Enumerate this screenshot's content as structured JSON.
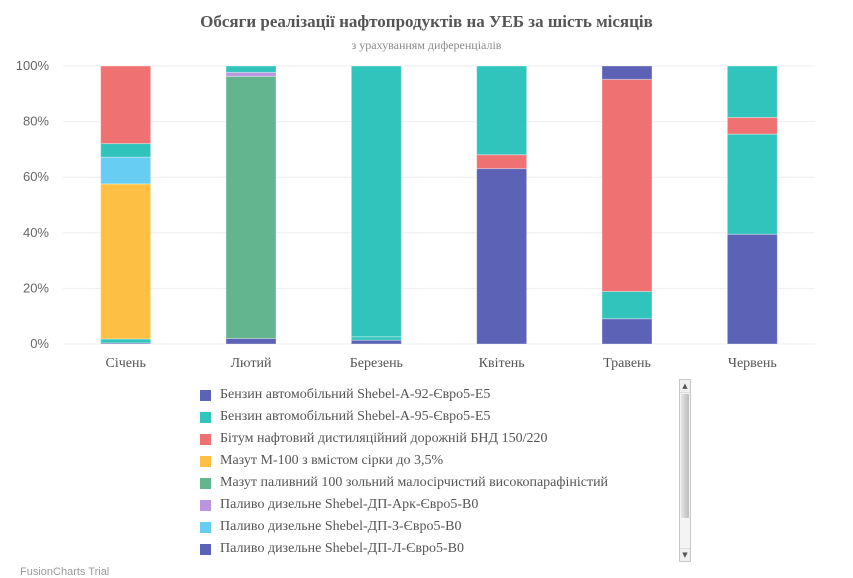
{
  "chart_data": {
    "type": "bar",
    "stacking": "percent",
    "orientation": "vertical",
    "title": "Обсяги реалізації нафтопродуктів на УЕБ за шість місяців",
    "subtitle": "з урахуванням диференціалів",
    "xlabel": "",
    "ylabel": "",
    "ylim": [
      0,
      100
    ],
    "y_ticks": [
      "0%",
      "20%",
      "40%",
      "60%",
      "80%",
      "100%"
    ],
    "grid": true,
    "legend_position": "bottom",
    "categories": [
      "Січень",
      "Лютий",
      "Березень",
      "Квітень",
      "Травень",
      "Червень"
    ],
    "legend": [
      {
        "name": "Бензин автомобільний Shebel-А-92-Євро5-Е5",
        "color": "#5c62b5"
      },
      {
        "name": "Бензин автомобільний Shebel-А-95-Євро5-Е5",
        "color": "#31c4bd"
      },
      {
        "name": "Бітум нафтовий дистиляційний дорожній БНД 150/220",
        "color": "#f07172"
      },
      {
        "name": "Мазут М-100 з вмістом сірки до 3,5%",
        "color": "#fdc044"
      },
      {
        "name": "Мазут паливний 100 зольний малосірчистий високопарафіністий",
        "color": "#62b58f"
      },
      {
        "name": "Паливо дизельне Shebel-ДП-Арк-Євро5-В0",
        "color": "#bc95df"
      },
      {
        "name": "Паливо дизельне Shebel-ДП-З-Євро5-В0",
        "color": "#67cdf2"
      },
      {
        "name": "Паливо дизельне Shebel-ДП-Л-Євро5-В0",
        "color": "#5c62b5"
      }
    ],
    "stacks_bottom_to_top": [
      {
        "category": "Січень",
        "segments": [
          {
            "color": "#5c62b5",
            "value": 0.4
          },
          {
            "color": "#31c4bd",
            "value": 1.4
          },
          {
            "color": "#fdc044",
            "value": 55.8
          },
          {
            "color": "#67cdf2",
            "value": 9.6
          },
          {
            "color": "#31c4bd",
            "value": 4.9
          },
          {
            "color": "#f07172",
            "value": 27.9
          }
        ]
      },
      {
        "category": "Лютий",
        "segments": [
          {
            "color": "#5c62b5",
            "value": 2.0
          },
          {
            "color": "#62b58f",
            "value": 94.3
          },
          {
            "color": "#bc95df",
            "value": 1.4
          },
          {
            "color": "#31c4bd",
            "value": 2.3
          }
        ]
      },
      {
        "category": "Березень",
        "segments": [
          {
            "color": "#5c62b5",
            "value": 1.4
          },
          {
            "color": "#31c4bd",
            "value": 1.2
          },
          {
            "color": "#31c4bd",
            "value": 97.4
          }
        ]
      },
      {
        "category": "Квітень",
        "segments": [
          {
            "color": "#5c62b5",
            "value": 63.1
          },
          {
            "color": "#f07172",
            "value": 5.0
          },
          {
            "color": "#31c4bd",
            "value": 31.9
          }
        ]
      },
      {
        "category": "Травень",
        "segments": [
          {
            "color": "#5c62b5",
            "value": 9.1
          },
          {
            "color": "#31c4bd",
            "value": 9.8
          },
          {
            "color": "#f07172",
            "value": 76.3
          },
          {
            "color": "#5c62b5",
            "value": 4.8
          }
        ]
      },
      {
        "category": "Червень",
        "segments": [
          {
            "color": "#5c62b5",
            "value": 39.5
          },
          {
            "color": "#31c4bd",
            "value": 36.0
          },
          {
            "color": "#f07172",
            "value": 6.0
          },
          {
            "color": "#31c4bd",
            "value": 18.5
          }
        ]
      }
    ]
  },
  "legend_scroll": {
    "up_arrow": "▲",
    "down_arrow": "▼"
  },
  "credits": "FusionCharts Trial"
}
